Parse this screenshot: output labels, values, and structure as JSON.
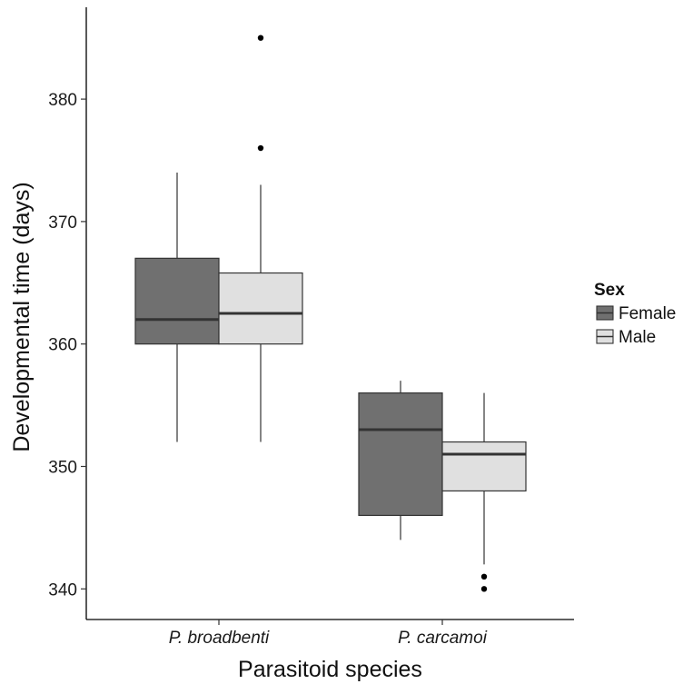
{
  "chart_data": {
    "type": "boxplot",
    "xlabel": "Parasitoid species",
    "ylabel": "Developmental time (days)",
    "ylim": [
      337.5,
      387.5
    ],
    "yticks": [
      340,
      350,
      360,
      370,
      380
    ],
    "categories": [
      "P. broadbenti",
      "P. carcamoi"
    ],
    "legend": {
      "title": "Sex",
      "position": "right",
      "entries": [
        {
          "name": "Female",
          "color": "#707070"
        },
        {
          "name": "Male",
          "color": "#e0e0e0"
        }
      ]
    },
    "series": [
      {
        "name": "Female",
        "color": "#707070",
        "boxes": [
          {
            "whisker_low": 352,
            "q1": 360,
            "median": 362,
            "q3": 367,
            "whisker_high": 374,
            "outliers": []
          },
          {
            "whisker_low": 344,
            "q1": 346,
            "median": 353,
            "q3": 356,
            "whisker_high": 357,
            "outliers": []
          }
        ]
      },
      {
        "name": "Male",
        "color": "#e0e0e0",
        "boxes": [
          {
            "whisker_low": 352,
            "q1": 360,
            "median": 362.5,
            "q3": 365.8,
            "whisker_high": 373,
            "outliers": [
              376,
              385
            ]
          },
          {
            "whisker_low": 342,
            "q1": 348,
            "median": 351,
            "q3": 352,
            "whisker_high": 356,
            "outliers": [
              340,
              341
            ]
          }
        ]
      }
    ],
    "grid": false
  }
}
